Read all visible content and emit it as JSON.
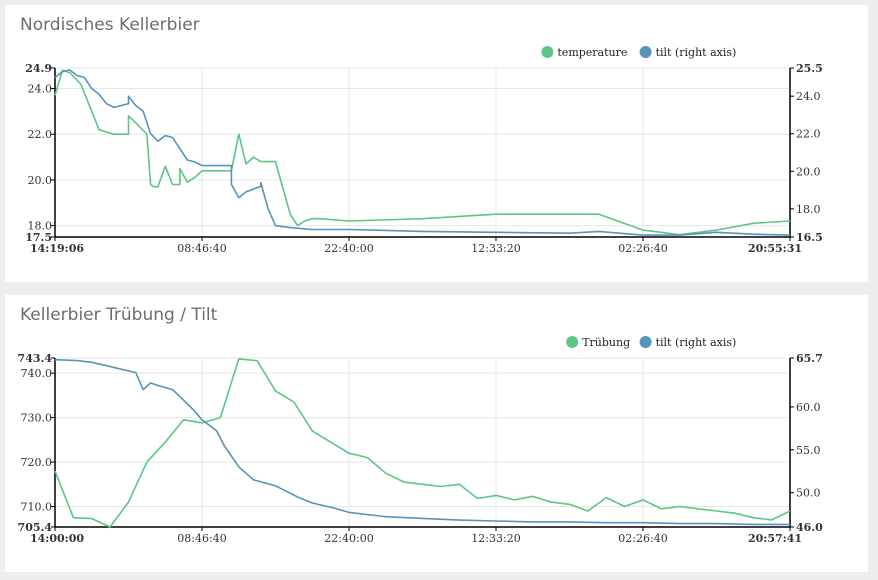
{
  "chart_data": [
    {
      "type": "line",
      "title": "Nordisches Kellerbier",
      "x_ticks": [
        "14:19:06",
        "08:46:40",
        "22:40:00",
        "12:33:20",
        "02:26:40",
        "20:55:31"
      ],
      "y_left": {
        "ticks": [
          "17.5",
          "18.0",
          "20.0",
          "22.0",
          "24.0",
          "24.9"
        ],
        "range": [
          17.5,
          24.9
        ]
      },
      "y_right": {
        "ticks": [
          "16.5",
          "18.0",
          "20.0",
          "22.0",
          "24.0",
          "25.5"
        ],
        "range": [
          16.5,
          25.5
        ]
      },
      "grid": true,
      "legend_position": "top-right",
      "colors": {
        "series1": "#5cc686",
        "series2": "#5694b9"
      },
      "series": [
        {
          "name": "temperature",
          "axis": "left",
          "x": [
            0,
            0.01,
            0.02,
            0.035,
            0.05,
            0.06,
            0.08,
            0.1,
            0.1,
            0.11,
            0.125,
            0.13,
            0.135,
            0.14,
            0.15,
            0.16,
            0.17,
            0.17,
            0.18,
            0.19,
            0.2,
            0.24,
            0.25,
            0.26,
            0.27,
            0.28,
            0.29,
            0.3,
            0.32,
            0.33,
            0.34,
            0.35,
            0.36,
            0.4,
            0.5,
            0.6,
            0.7,
            0.74,
            0.8,
            0.85,
            0.9,
            0.95,
            1.0
          ],
          "y": [
            23.7,
            24.8,
            24.7,
            24.2,
            23.0,
            22.2,
            22.0,
            22.0,
            22.8,
            22.5,
            22.0,
            19.8,
            19.7,
            19.7,
            20.6,
            19.8,
            19.8,
            20.5,
            19.9,
            20.1,
            20.4,
            20.4,
            22.0,
            20.7,
            21.0,
            20.8,
            20.8,
            20.8,
            18.5,
            18.0,
            18.2,
            18.3,
            18.3,
            18.2,
            18.3,
            18.5,
            18.5,
            18.5,
            17.8,
            17.6,
            17.8,
            18.1,
            18.2
          ]
        },
        {
          "name": "tilt (right axis)",
          "axis": "right",
          "x": [
            0,
            0.01,
            0.02,
            0.03,
            0.04,
            0.05,
            0.06,
            0.07,
            0.08,
            0.1,
            0.1,
            0.11,
            0.12,
            0.13,
            0.14,
            0.15,
            0.16,
            0.17,
            0.18,
            0.19,
            0.2,
            0.24,
            0.24,
            0.25,
            0.26,
            0.28,
            0.28,
            0.29,
            0.3,
            0.32,
            0.35,
            0.4,
            0.45,
            0.5,
            0.6,
            0.7,
            0.74,
            0.8,
            0.85,
            0.9,
            0.95,
            1.0
          ],
          "y": [
            25.0,
            25.3,
            25.4,
            25.1,
            25.0,
            24.4,
            24.1,
            23.6,
            23.4,
            23.6,
            24.0,
            23.5,
            23.2,
            22.0,
            21.6,
            21.9,
            21.8,
            21.2,
            20.6,
            20.5,
            20.3,
            20.3,
            19.3,
            18.6,
            18.9,
            19.2,
            19.4,
            18.0,
            17.1,
            17.0,
            16.9,
            16.9,
            16.85,
            16.8,
            16.75,
            16.7,
            16.8,
            16.6,
            16.6,
            16.75,
            16.65,
            16.6
          ]
        }
      ]
    },
    {
      "type": "line",
      "title": "Kellerbier Trübung / Tilt",
      "x_ticks": [
        "14:00:00",
        "08:46:40",
        "22:40:00",
        "12:33:20",
        "02:26:40",
        "20:57:41"
      ],
      "y_left": {
        "ticks": [
          "705.4",
          "710.0",
          "720.0",
          "730.0",
          "740.0",
          "743.4"
        ],
        "range": [
          705.4,
          743.4
        ]
      },
      "y_right": {
        "ticks": [
          "46.0",
          "50.0",
          "55.0",
          "60.0",
          "65.7"
        ],
        "range": [
          46.0,
          65.7
        ]
      },
      "grid": true,
      "legend_position": "top-right",
      "colors": {
        "series1": "#5cc686",
        "series2": "#5694b9"
      },
      "series": [
        {
          "name": "Trübung",
          "axis": "left",
          "x": [
            0,
            0.025,
            0.05,
            0.075,
            0.1,
            0.125,
            0.15,
            0.175,
            0.2,
            0.225,
            0.25,
            0.275,
            0.3,
            0.325,
            0.35,
            0.375,
            0.4,
            0.425,
            0.45,
            0.475,
            0.5,
            0.525,
            0.55,
            0.575,
            0.6,
            0.625,
            0.65,
            0.675,
            0.7,
            0.725,
            0.75,
            0.775,
            0.8,
            0.825,
            0.85,
            0.875,
            0.9,
            0.925,
            0.95,
            0.975,
            1.0
          ],
          "y": [
            718,
            707.5,
            707.3,
            705.4,
            711,
            720,
            724.5,
            729.5,
            728.8,
            730,
            743.2,
            742.8,
            736,
            733.5,
            727,
            724.5,
            722,
            721,
            717.5,
            715.5,
            715,
            714.5,
            715,
            711.8,
            712.5,
            711.5,
            712.3,
            711,
            710.5,
            709,
            712,
            710,
            711.5,
            709.5,
            710,
            709.5,
            709,
            708.5,
            707.5,
            707,
            709
          ]
        },
        {
          "name": "tilt (right axis)",
          "axis": "right",
          "x": [
            0,
            0.03,
            0.05,
            0.07,
            0.09,
            0.11,
            0.12,
            0.13,
            0.14,
            0.16,
            0.17,
            0.19,
            0.2,
            0.22,
            0.23,
            0.25,
            0.27,
            0.3,
            0.33,
            0.35,
            0.38,
            0.4,
            0.45,
            0.5,
            0.55,
            0.6,
            0.65,
            0.7,
            0.75,
            0.8,
            0.85,
            0.9,
            0.95,
            1.0
          ],
          "y": [
            65.5,
            65.4,
            65.2,
            64.8,
            64.4,
            64.0,
            62.0,
            62.8,
            62.5,
            62.0,
            61.2,
            59.5,
            58.5,
            57.2,
            55.5,
            53.0,
            51.5,
            50.8,
            49.5,
            48.8,
            48.2,
            47.7,
            47.2,
            47.0,
            46.8,
            46.7,
            46.6,
            46.6,
            46.5,
            46.5,
            46.4,
            46.4,
            46.3,
            46.3
          ]
        }
      ]
    }
  ]
}
